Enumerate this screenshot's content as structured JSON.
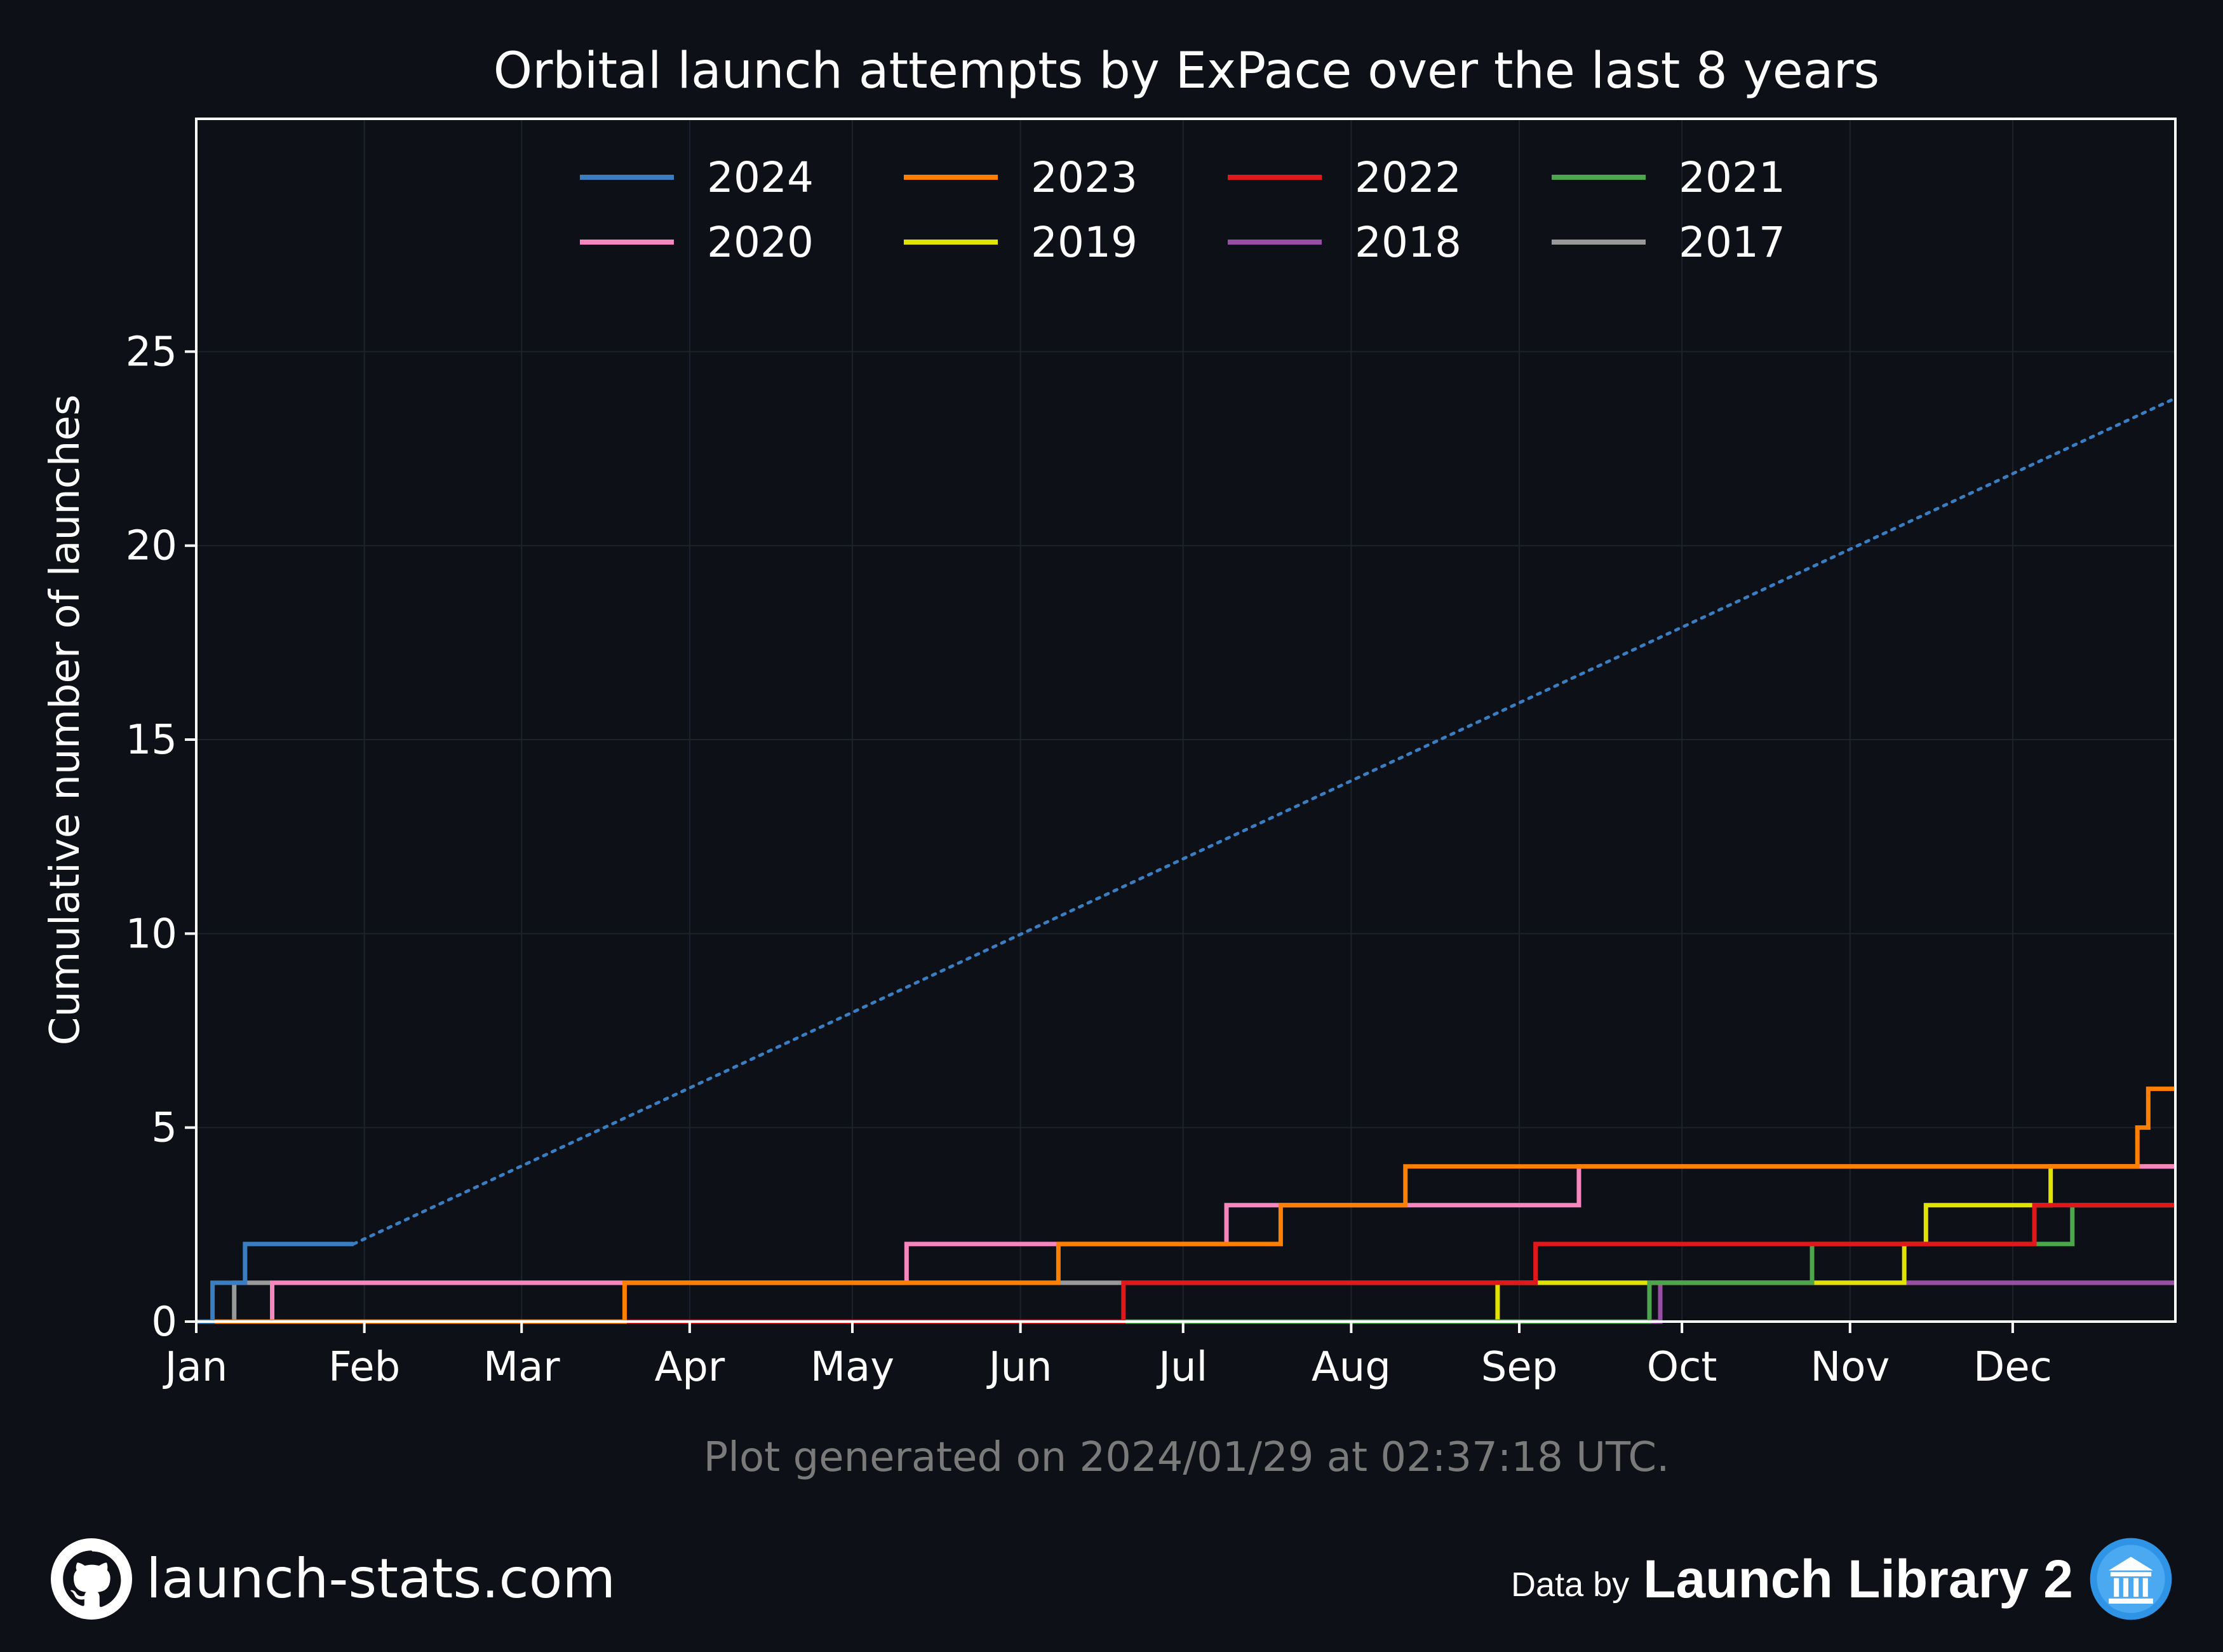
{
  "chart_data": {
    "type": "line",
    "title": "Orbital launch attempts by ExPace over the last 8 years",
    "xlabel": "",
    "ylabel": "Cumulative number of launches",
    "x_unit": "day of year",
    "xlim": [
      0,
      365
    ],
    "ylim": [
      0,
      31
    ],
    "yticks": [
      0,
      5,
      10,
      15,
      20,
      25
    ],
    "month_ticks": [
      {
        "label": "Jan",
        "day": 0
      },
      {
        "label": "Feb",
        "day": 31
      },
      {
        "label": "Mar",
        "day": 60
      },
      {
        "label": "Apr",
        "day": 91
      },
      {
        "label": "May",
        "day": 121
      },
      {
        "label": "Jun",
        "day": 152
      },
      {
        "label": "Jul",
        "day": 182
      },
      {
        "label": "Aug",
        "day": 213
      },
      {
        "label": "Sep",
        "day": 244
      },
      {
        "label": "Oct",
        "day": 274
      },
      {
        "label": "Nov",
        "day": 305
      },
      {
        "label": "Dec",
        "day": 335
      }
    ],
    "grid": true,
    "legend_position": "top-center",
    "series": [
      {
        "name": "2024",
        "color": "#3a7dc0",
        "launch_days": [
          3,
          9
        ],
        "end_day": 29,
        "projection": {
          "from": [
            29,
            2
          ],
          "to": [
            365,
            23.8
          ]
        }
      },
      {
        "name": "2023",
        "color": "#ff8000",
        "launch_days": [
          79,
          159,
          200,
          223,
          358,
          360
        ],
        "end_day": 365
      },
      {
        "name": "2022",
        "color": "#e0181b",
        "launch_days": [
          171,
          247,
          339
        ],
        "end_day": 365
      },
      {
        "name": "2021",
        "color": "#4ca64c",
        "launch_days": [
          268,
          298,
          346
        ],
        "end_day": 365
      },
      {
        "name": "2020",
        "color": "#f785be",
        "launch_days": [
          14,
          131,
          190,
          255
        ],
        "end_day": 365
      },
      {
        "name": "2019",
        "color": "#e2e200",
        "launch_days": [
          240,
          315,
          319,
          342
        ],
        "end_day": 365
      },
      {
        "name": "2018",
        "color": "#984ea3",
        "launch_days": [
          270
        ],
        "end_day": 365
      },
      {
        "name": "2017",
        "color": "#999999",
        "launch_days": [
          7
        ],
        "end_day": 365
      }
    ],
    "legend_order": [
      "2024",
      "2023",
      "2022",
      "2021",
      "2020",
      "2019",
      "2018",
      "2017"
    ],
    "annotation": "Plot generated on 2024/01/29 at 02:37:18 UTC."
  },
  "footer": {
    "site": "launch-stats.com",
    "data_by": "Data by",
    "source": "Launch Library 2",
    "github_icon": "github-icon",
    "ll2_icon": "launch-library-icon"
  }
}
